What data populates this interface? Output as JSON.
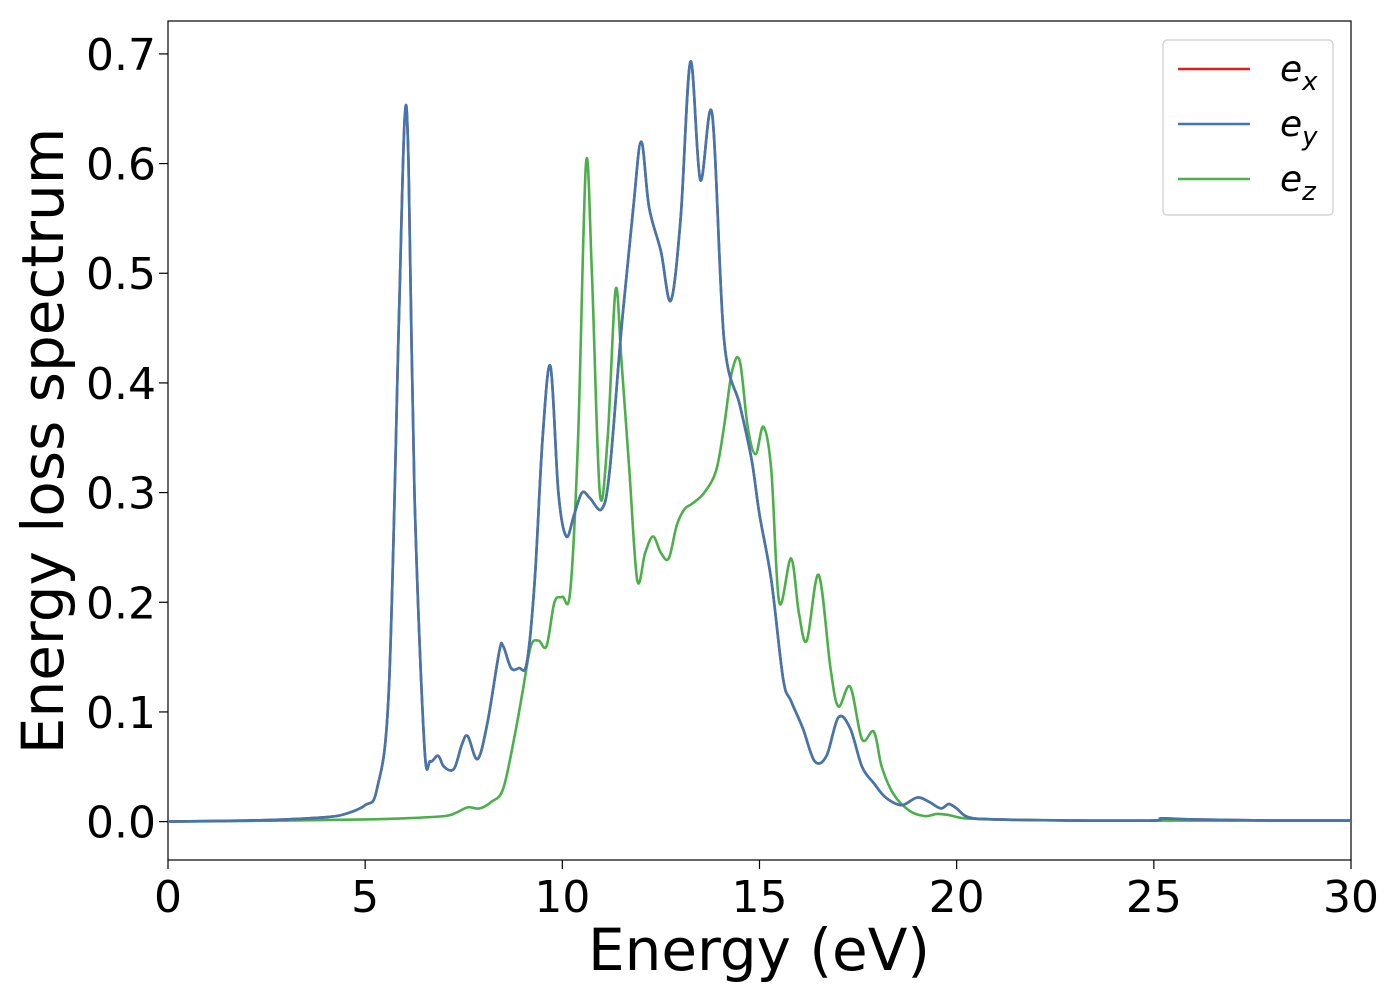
{
  "chart_data": {
    "type": "line",
    "title": "",
    "xlabel": "Energy (eV)",
    "ylabel": "Energy loss spectrum",
    "xlim": [
      0,
      30
    ],
    "ylim": [
      -0.035,
      0.73
    ],
    "xticks": [
      0,
      5,
      10,
      15,
      20,
      25,
      30
    ],
    "xtick_labels": [
      "0",
      "5",
      "10",
      "15",
      "20",
      "25",
      "30"
    ],
    "yticks": [
      0.0,
      0.1,
      0.2,
      0.3,
      0.4,
      0.5,
      0.6,
      0.7
    ],
    "ytick_labels": [
      "0.0",
      "0.1",
      "0.2",
      "0.3",
      "0.4",
      "0.5",
      "0.6",
      "0.7"
    ],
    "grid": false,
    "legend_position": "top-right",
    "series": [
      {
        "name": "e",
        "subscript": "x",
        "color": "#e41a1c",
        "x": [
          0,
          2,
          3,
          4,
          4.5,
          5.0,
          5.3,
          5.6,
          5.85,
          6.0,
          6.1,
          6.25,
          6.5,
          6.65,
          6.85,
          7.0,
          7.25,
          7.45,
          7.6,
          7.85,
          8.1,
          8.4,
          8.5,
          8.7,
          8.9,
          9.1,
          9.3,
          9.5,
          9.7,
          9.9,
          10.1,
          10.3,
          10.5,
          10.7,
          11.0,
          11.2,
          11.5,
          11.8,
          12.0,
          12.2,
          12.5,
          12.75,
          13.0,
          13.25,
          13.5,
          13.8,
          14.1,
          14.5,
          14.8,
          15.0,
          15.3,
          15.6,
          15.8,
          16.1,
          16.4,
          16.7,
          17.0,
          17.3,
          17.6,
          17.9,
          18.2,
          18.6,
          19.0,
          19.3,
          19.6,
          19.8,
          20.0,
          20.3,
          21,
          23,
          25,
          25.2,
          26,
          28,
          30
        ],
        "y": [
          0,
          0.001,
          0.002,
          0.004,
          0.007,
          0.015,
          0.03,
          0.12,
          0.45,
          0.64,
          0.6,
          0.3,
          0.07,
          0.055,
          0.06,
          0.05,
          0.048,
          0.07,
          0.078,
          0.057,
          0.09,
          0.155,
          0.16,
          0.14,
          0.14,
          0.145,
          0.22,
          0.35,
          0.415,
          0.3,
          0.26,
          0.28,
          0.3,
          0.295,
          0.285,
          0.32,
          0.45,
          0.56,
          0.62,
          0.56,
          0.52,
          0.475,
          0.55,
          0.693,
          0.585,
          0.645,
          0.44,
          0.38,
          0.33,
          0.28,
          0.22,
          0.13,
          0.11,
          0.085,
          0.055,
          0.06,
          0.095,
          0.085,
          0.05,
          0.035,
          0.022,
          0.015,
          0.022,
          0.018,
          0.012,
          0.016,
          0.012,
          0.004,
          0.002,
          0.001,
          0.001,
          0.003,
          0.002,
          0.001,
          0.001
        ]
      },
      {
        "name": "e",
        "subscript": "y",
        "color": "#3f78b0",
        "x": [
          0,
          2,
          3,
          4,
          4.5,
          5.0,
          5.3,
          5.6,
          5.85,
          6.0,
          6.1,
          6.25,
          6.5,
          6.65,
          6.85,
          7.0,
          7.25,
          7.45,
          7.6,
          7.85,
          8.1,
          8.4,
          8.5,
          8.7,
          8.9,
          9.1,
          9.3,
          9.5,
          9.7,
          9.9,
          10.1,
          10.3,
          10.5,
          10.7,
          11.0,
          11.2,
          11.5,
          11.8,
          12.0,
          12.2,
          12.5,
          12.75,
          13.0,
          13.25,
          13.5,
          13.8,
          14.1,
          14.5,
          14.8,
          15.0,
          15.3,
          15.6,
          15.8,
          16.1,
          16.4,
          16.7,
          17.0,
          17.3,
          17.6,
          17.9,
          18.2,
          18.6,
          19.0,
          19.3,
          19.6,
          19.8,
          20.0,
          20.3,
          21,
          23,
          25,
          25.2,
          26,
          28,
          30
        ],
        "y": [
          0,
          0.001,
          0.002,
          0.004,
          0.007,
          0.015,
          0.03,
          0.12,
          0.45,
          0.64,
          0.6,
          0.3,
          0.07,
          0.055,
          0.06,
          0.05,
          0.048,
          0.07,
          0.078,
          0.057,
          0.09,
          0.155,
          0.16,
          0.14,
          0.14,
          0.145,
          0.22,
          0.35,
          0.415,
          0.3,
          0.26,
          0.28,
          0.3,
          0.295,
          0.285,
          0.32,
          0.45,
          0.56,
          0.62,
          0.56,
          0.52,
          0.475,
          0.55,
          0.693,
          0.585,
          0.645,
          0.44,
          0.38,
          0.33,
          0.28,
          0.22,
          0.13,
          0.11,
          0.085,
          0.055,
          0.06,
          0.095,
          0.085,
          0.05,
          0.035,
          0.022,
          0.015,
          0.022,
          0.018,
          0.012,
          0.016,
          0.012,
          0.004,
          0.002,
          0.001,
          0.001,
          0.003,
          0.002,
          0.001,
          0.001
        ]
      },
      {
        "name": "e",
        "subscript": "z",
        "color": "#4daf4a",
        "x": [
          0,
          3,
          5,
          6,
          7,
          7.3,
          7.6,
          7.9,
          8.2,
          8.5,
          8.8,
          9.0,
          9.2,
          9.4,
          9.6,
          9.8,
          10.0,
          10.2,
          10.4,
          10.6,
          10.75,
          10.95,
          11.15,
          11.35,
          11.5,
          11.7,
          11.9,
          12.1,
          12.3,
          12.5,
          12.7,
          12.9,
          13.1,
          13.3,
          13.6,
          13.9,
          14.1,
          14.3,
          14.5,
          14.7,
          14.9,
          15.1,
          15.3,
          15.5,
          15.8,
          16.0,
          16.2,
          16.5,
          16.8,
          17.0,
          17.3,
          17.6,
          17.9,
          18.1,
          18.4,
          18.8,
          19.2,
          19.5,
          19.8,
          20.2,
          21,
          23,
          25,
          26,
          28,
          30
        ],
        "y": [
          0,
          0.001,
          0.002,
          0.003,
          0.005,
          0.008,
          0.013,
          0.012,
          0.018,
          0.03,
          0.08,
          0.12,
          0.16,
          0.165,
          0.16,
          0.2,
          0.205,
          0.21,
          0.35,
          0.6,
          0.5,
          0.3,
          0.35,
          0.485,
          0.42,
          0.32,
          0.22,
          0.245,
          0.26,
          0.245,
          0.24,
          0.27,
          0.285,
          0.29,
          0.3,
          0.32,
          0.36,
          0.41,
          0.42,
          0.36,
          0.335,
          0.36,
          0.32,
          0.2,
          0.24,
          0.19,
          0.165,
          0.225,
          0.14,
          0.105,
          0.123,
          0.075,
          0.082,
          0.05,
          0.025,
          0.01,
          0.005,
          0.007,
          0.006,
          0.003,
          0.002,
          0.001,
          0.001,
          0.001,
          0.001,
          0.001
        ]
      }
    ]
  }
}
